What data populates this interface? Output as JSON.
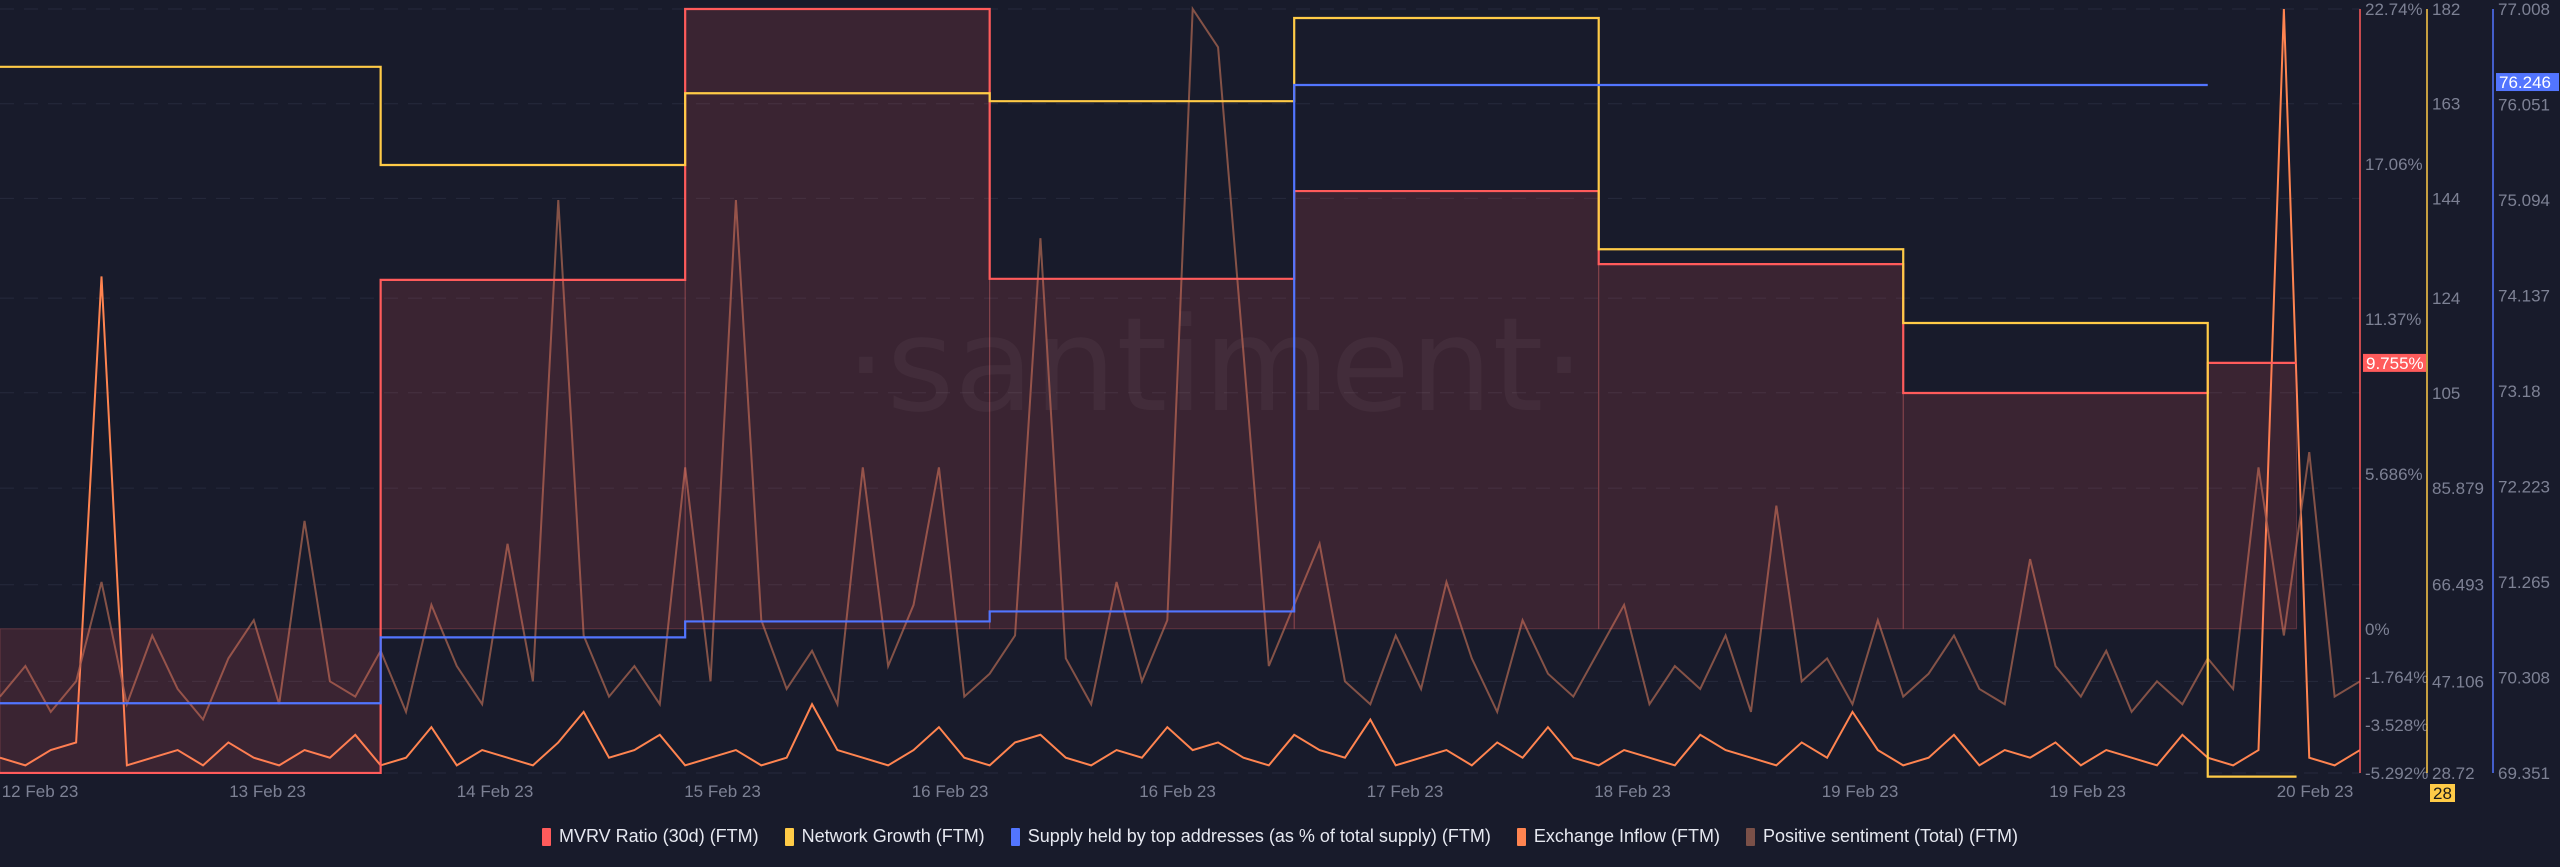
{
  "chart_data": {
    "type": "line",
    "watermark": "·santiment·",
    "x_range": [
      "2023-02-12T00:00",
      "2023-02-19T18:00"
    ],
    "x_ticks": [
      "12 Feb 23",
      "13 Feb 23",
      "14 Feb 23",
      "15 Feb 23",
      "16 Feb 23",
      "16 Feb 23",
      "17 Feb 23",
      "18 Feb 23",
      "19 Feb 23",
      "19 Feb 23",
      "20 Feb 23"
    ],
    "axes": [
      {
        "series": "MVRV Ratio (30d) (FTM)",
        "color": "#ff5b5b",
        "range": [
          -5.292,
          22.74
        ],
        "ticks": [
          "22.74%",
          "17.06%",
          "11.37%",
          "5.686%",
          "0%",
          "-1.764%",
          "-3.528%",
          "-5.292%"
        ],
        "tick_values": [
          22.74,
          17.06,
          11.37,
          5.686,
          0,
          -1.764,
          -3.528,
          -5.292
        ],
        "last_value_label": "9.755%",
        "last_value": 9.755
      },
      {
        "series": "Network Growth (FTM)",
        "color": "#ffcb47",
        "range": [
          28.72,
          182
        ],
        "ticks": [
          "182",
          "163",
          "144",
          "124",
          "105",
          "85.879",
          "66.493",
          "47.106",
          "28.72"
        ],
        "tick_values": [
          182,
          163,
          144,
          124,
          105,
          85.879,
          66.493,
          47.106,
          28.72
        ],
        "last_value_label": "28",
        "last_value": 28
      },
      {
        "series": "Supply held by top addresses (as % of total supply) (FTM)",
        "color": "#5275ff",
        "range": [
          69.351,
          77.008
        ],
        "ticks": [
          "77.008",
          "76.051",
          "75.094",
          "74.137",
          "73.18",
          "72.223",
          "71.265",
          "70.308",
          "69.351"
        ],
        "tick_values": [
          77.008,
          76.051,
          75.094,
          74.137,
          73.18,
          72.223,
          71.265,
          70.308,
          69.351
        ],
        "last_value_label": "76.246",
        "last_value": 76.246
      }
    ],
    "series": [
      {
        "name": "MVRV Ratio (30d) (FTM)",
        "color": "#ff5b5b",
        "kind": "step-area",
        "steps": [
          {
            "from": "2023-02-12T00:00",
            "to": "2023-02-13T06:00",
            "value": -5.29
          },
          {
            "from": "2023-02-13T06:00",
            "to": "2023-02-14T06:00",
            "value": 12.8
          },
          {
            "from": "2023-02-14T06:00",
            "to": "2023-02-15T06:00",
            "value": 22.74
          },
          {
            "from": "2023-02-15T06:00",
            "to": "2023-02-16T06:00",
            "value": 12.84
          },
          {
            "from": "2023-02-16T06:00",
            "to": "2023-02-17T06:00",
            "value": 16.06
          },
          {
            "from": "2023-02-17T06:00",
            "to": "2023-02-18T06:00",
            "value": 13.38
          },
          {
            "from": "2023-02-18T06:00",
            "to": "2023-02-19T06:00",
            "value": 8.65
          },
          {
            "from": "2023-02-19T06:00",
            "to": "2023-02-19T13:00",
            "value": 9.755
          }
        ]
      },
      {
        "name": "Network Growth (FTM)",
        "color": "#ffcb47",
        "kind": "step",
        "steps": [
          {
            "from": "2023-02-12T00:00",
            "to": "2023-02-13T06:00",
            "value": 170.4
          },
          {
            "from": "2023-02-13T06:00",
            "to": "2023-02-14T06:00",
            "value": 150.7
          },
          {
            "from": "2023-02-14T06:00",
            "to": "2023-02-15T06:00",
            "value": 165.1
          },
          {
            "from": "2023-02-15T06:00",
            "to": "2023-02-16T06:00",
            "value": 163.5
          },
          {
            "from": "2023-02-16T06:00",
            "to": "2023-02-17T06:00",
            "value": 180.2
          },
          {
            "from": "2023-02-17T06:00",
            "to": "2023-02-18T06:00",
            "value": 133.8
          },
          {
            "from": "2023-02-18T06:00",
            "to": "2023-02-19T06:00",
            "value": 119.0
          },
          {
            "from": "2023-02-19T06:00",
            "to": "2023-02-19T13:00",
            "value": 28
          }
        ]
      },
      {
        "name": "Supply held by top addresses (as % of total supply) (FTM)",
        "color": "#5275ff",
        "kind": "step",
        "steps": [
          {
            "from": "2023-02-12T00:00",
            "to": "2023-02-13T06:00",
            "value": 70.05
          },
          {
            "from": "2023-02-13T06:00",
            "to": "2023-02-14T06:00",
            "value": 70.71
          },
          {
            "from": "2023-02-14T06:00",
            "to": "2023-02-15T06:00",
            "value": 70.87
          },
          {
            "from": "2023-02-15T06:00",
            "to": "2023-02-16T06:00",
            "value": 70.97
          },
          {
            "from": "2023-02-16T06:00",
            "to": "2023-02-19T06:00",
            "value": 76.246
          }
        ]
      },
      {
        "name": "Exchange Inflow (FTM)",
        "color": "#ff8450",
        "kind": "line",
        "start": "2023-02-12T00:00",
        "interval_hours": 2,
        "values": [
          2,
          1,
          3,
          4,
          65,
          1,
          2,
          3,
          1,
          4,
          2,
          1,
          3,
          2,
          5,
          1,
          2,
          6,
          1,
          3,
          2,
          1,
          4,
          8,
          2,
          3,
          5,
          1,
          2,
          3,
          1,
          2,
          9,
          3,
          2,
          1,
          3,
          6,
          2,
          1,
          4,
          5,
          2,
          1,
          3,
          2,
          6,
          3,
          4,
          2,
          1,
          5,
          3,
          2,
          7,
          1,
          2,
          3,
          1,
          4,
          2,
          6,
          2,
          1,
          3,
          2,
          1,
          5,
          3,
          2,
          1,
          4,
          2,
          8,
          3,
          1,
          2,
          5,
          1,
          3,
          2,
          4,
          1,
          3,
          2,
          1,
          5,
          2,
          1,
          3,
          100,
          2,
          1,
          3
        ]
      },
      {
        "name": "Positive sentiment (Total) (FTM)",
        "color": "#a0604f",
        "kind": "line",
        "start": "2023-02-12T00:00",
        "interval_hours": 2,
        "values": [
          10,
          14,
          8,
          12,
          25,
          9,
          18,
          11,
          7,
          15,
          20,
          9,
          33,
          12,
          10,
          16,
          8,
          22,
          14,
          9,
          30,
          12,
          75,
          18,
          10,
          14,
          9,
          40,
          12,
          75,
          20,
          11,
          16,
          9,
          40,
          14,
          22,
          40,
          10,
          13,
          18,
          70,
          15,
          9,
          25,
          12,
          20,
          100,
          95,
          55,
          14,
          22,
          30,
          12,
          9,
          18,
          11,
          25,
          15,
          8,
          20,
          13,
          10,
          16,
          22,
          9,
          14,
          11,
          18,
          8,
          35,
          12,
          15,
          9,
          20,
          10,
          13,
          18,
          11,
          9,
          28,
          14,
          10,
          16,
          8,
          12,
          9,
          15,
          11,
          40,
          18,
          42,
          10,
          12
        ]
      }
    ],
    "legend": {
      "placement": "bottom",
      "items": [
        {
          "label": "MVRV Ratio (30d) (FTM)",
          "color": "#ff5b5b"
        },
        {
          "label": "Network Growth (FTM)",
          "color": "#ffcb47"
        },
        {
          "label": "Supply held by top addresses (as % of total supply) (FTM)",
          "color": "#5275ff"
        },
        {
          "label": "Exchange Inflow (FTM)",
          "color": "#ff8450"
        },
        {
          "label": "Positive sentiment (Total) (FTM)",
          "color": "#7a5048"
        }
      ]
    },
    "grid": true,
    "background": "#181b2b"
  }
}
